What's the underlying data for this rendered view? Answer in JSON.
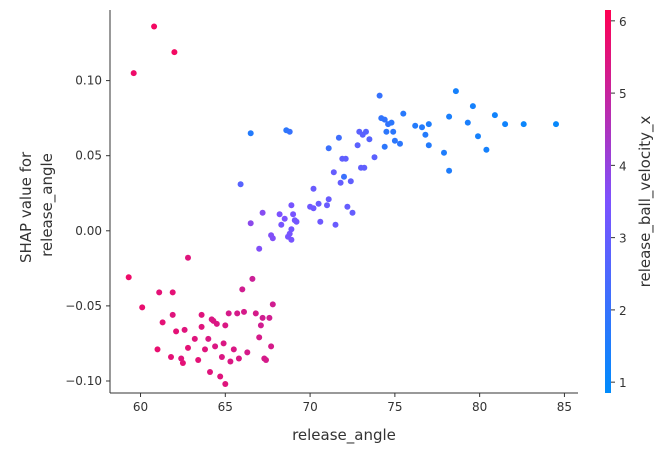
{
  "chart_data": {
    "type": "scatter",
    "title": "",
    "xlabel": "release_angle",
    "ylabel_lines": [
      "SHAP value for",
      "release_angle"
    ],
    "xlim": [
      58.2,
      85.8
    ],
    "ylim": [
      -0.108,
      0.147
    ],
    "xticks": [
      60,
      65,
      70,
      75,
      80,
      85
    ],
    "xtick_labels": [
      "60",
      "65",
      "70",
      "75",
      "80",
      "85"
    ],
    "yticks": [
      -0.1,
      -0.05,
      0.0,
      0.05,
      0.1
    ],
    "ytick_labels": [
      "−0.10",
      "−0.05",
      "0.00",
      "0.05",
      "0.10"
    ],
    "grid": false,
    "colorbar": {
      "label": "release_ball_velocity_x",
      "range": [
        0.85,
        6.15
      ],
      "ticks": [
        1,
        2,
        3,
        4,
        5,
        6
      ],
      "tick_labels": [
        "1",
        "2",
        "3",
        "4",
        "5",
        "6"
      ],
      "colors": {
        "low": "#008bfb",
        "mid": "#7c52ff",
        "high": "#ff0052"
      }
    },
    "points": [
      [
        60.8,
        0.136,
        5.9
      ],
      [
        59.6,
        0.105,
        5.8
      ],
      [
        62.0,
        0.119,
        5.9
      ],
      [
        59.3,
        -0.031,
        5.8
      ],
      [
        60.1,
        -0.051,
        5.7
      ],
      [
        61.1,
        -0.041,
        5.6
      ],
      [
        61.9,
        -0.041,
        5.6
      ],
      [
        62.8,
        -0.018,
        5.5
      ],
      [
        61.3,
        -0.061,
        5.6
      ],
      [
        61.9,
        -0.056,
        5.5
      ],
      [
        61.0,
        -0.079,
        5.7
      ],
      [
        61.8,
        -0.084,
        5.6
      ],
      [
        62.1,
        -0.067,
        5.6
      ],
      [
        62.6,
        -0.066,
        5.5
      ],
      [
        62.5,
        -0.088,
        5.6
      ],
      [
        62.8,
        -0.078,
        5.6
      ],
      [
        63.2,
        -0.072,
        5.5
      ],
      [
        63.4,
        -0.086,
        5.6
      ],
      [
        63.6,
        -0.056,
        5.5
      ],
      [
        63.6,
        -0.064,
        5.5
      ],
      [
        63.8,
        -0.079,
        5.5
      ],
      [
        64.0,
        -0.072,
        5.4
      ],
      [
        64.1,
        -0.094,
        5.5
      ],
      [
        64.3,
        -0.06,
        5.4
      ],
      [
        64.4,
        -0.077,
        5.4
      ],
      [
        64.5,
        -0.062,
        5.4
      ],
      [
        64.7,
        -0.097,
        5.5
      ],
      [
        64.8,
        -0.084,
        5.4
      ],
      [
        64.9,
        -0.075,
        5.4
      ],
      [
        65.0,
        -0.102,
        5.5
      ],
      [
        65.0,
        -0.063,
        5.4
      ],
      [
        65.2,
        -0.055,
        5.3
      ],
      [
        65.3,
        -0.087,
        5.4
      ],
      [
        65.5,
        -0.079,
        5.4
      ],
      [
        65.7,
        -0.055,
        5.3
      ],
      [
        65.8,
        -0.085,
        5.4
      ],
      [
        66.0,
        -0.039,
        5.2
      ],
      [
        66.1,
        -0.054,
        5.3
      ],
      [
        66.3,
        -0.081,
        5.3
      ],
      [
        66.6,
        -0.032,
        5.1
      ],
      [
        66.8,
        -0.055,
        5.3
      ],
      [
        67.0,
        -0.071,
        5.3
      ],
      [
        67.1,
        -0.063,
        5.2
      ],
      [
        67.2,
        -0.058,
        5.2
      ],
      [
        67.3,
        -0.085,
        5.3
      ],
      [
        67.4,
        -0.086,
        5.3
      ],
      [
        67.6,
        -0.058,
        5.2
      ],
      [
        67.7,
        -0.077,
        5.3
      ],
      [
        67.8,
        -0.049,
        5.2
      ],
      [
        64.2,
        -0.059,
        5.4
      ],
      [
        62.4,
        -0.085,
        5.5
      ],
      [
        66.5,
        0.005,
        3.8
      ],
      [
        67.0,
        -0.012,
        3.6
      ],
      [
        67.2,
        0.012,
        3.7
      ],
      [
        67.7,
        -0.003,
        3.6
      ],
      [
        67.8,
        -0.005,
        3.6
      ],
      [
        68.2,
        0.011,
        3.5
      ],
      [
        68.3,
        0.004,
        3.4
      ],
      [
        68.5,
        0.008,
        3.5
      ],
      [
        68.8,
        -0.002,
        3.4
      ],
      [
        68.9,
        -0.006,
        3.4
      ],
      [
        68.9,
        0.017,
        3.4
      ],
      [
        69.0,
        0.011,
        3.4
      ],
      [
        69.1,
        0.007,
        3.3
      ],
      [
        69.2,
        0.006,
        3.3
      ],
      [
        68.7,
        -0.004,
        3.4
      ],
      [
        68.9,
        0.001,
        3.3
      ],
      [
        70.0,
        0.016,
        3.2
      ],
      [
        70.2,
        0.015,
        3.2
      ],
      [
        70.5,
        0.018,
        3.1
      ],
      [
        70.6,
        0.006,
        3.2
      ],
      [
        70.2,
        0.028,
        3.1
      ],
      [
        71.0,
        0.017,
        3.1
      ],
      [
        71.1,
        0.021,
        3.1
      ],
      [
        71.4,
        0.039,
        3.0
      ],
      [
        71.5,
        0.004,
        3.1
      ],
      [
        71.8,
        0.032,
        3.0
      ],
      [
        71.9,
        0.048,
        2.9
      ],
      [
        72.1,
        0.048,
        2.9
      ],
      [
        72.2,
        0.016,
        3.0
      ],
      [
        72.4,
        0.033,
        2.9
      ],
      [
        72.5,
        0.012,
        3.0
      ],
      [
        72.8,
        0.057,
        2.8
      ],
      [
        72.9,
        0.066,
        2.8
      ],
      [
        73.0,
        0.042,
        2.9
      ],
      [
        73.2,
        0.042,
        2.9
      ],
      [
        73.1,
        0.064,
        2.8
      ],
      [
        73.3,
        0.066,
        2.7
      ],
      [
        73.5,
        0.061,
        2.7
      ],
      [
        73.8,
        0.049,
        2.8
      ],
      [
        65.9,
        0.031,
        2.7
      ],
      [
        74.1,
        0.09,
        2.0
      ],
      [
        74.2,
        0.075,
        1.9
      ],
      [
        74.4,
        0.074,
        1.9
      ],
      [
        74.6,
        0.071,
        1.9
      ],
      [
        74.5,
        0.066,
        1.8
      ],
      [
        74.9,
        0.066,
        1.8
      ],
      [
        74.8,
        0.072,
        1.8
      ],
      [
        74.4,
        0.056,
        1.8
      ],
      [
        75.0,
        0.06,
        1.8
      ],
      [
        75.3,
        0.058,
        1.8
      ],
      [
        75.5,
        0.078,
        1.7
      ],
      [
        76.2,
        0.07,
        1.6
      ],
      [
        76.6,
        0.069,
        1.6
      ],
      [
        76.8,
        0.064,
        1.6
      ],
      [
        77.0,
        0.071,
        1.5
      ],
      [
        77.0,
        0.057,
        1.6
      ],
      [
        77.9,
        0.052,
        1.5
      ],
      [
        78.2,
        0.04,
        1.5
      ],
      [
        78.2,
        0.076,
        1.4
      ],
      [
        78.6,
        0.093,
        1.3
      ],
      [
        79.3,
        0.072,
        1.4
      ],
      [
        79.6,
        0.083,
        1.3
      ],
      [
        79.9,
        0.063,
        1.3
      ],
      [
        80.4,
        0.054,
        1.3
      ],
      [
        80.9,
        0.077,
        1.2
      ],
      [
        81.5,
        0.071,
        1.2
      ],
      [
        82.6,
        0.071,
        1.1
      ],
      [
        84.5,
        0.071,
        1.0
      ],
      [
        71.1,
        0.055,
        2.1
      ],
      [
        71.7,
        0.062,
        2.2
      ],
      [
        72.0,
        0.036,
        2.1
      ],
      [
        68.6,
        0.067,
        1.8
      ],
      [
        68.8,
        0.066,
        2.0
      ],
      [
        66.5,
        0.065,
        1.6
      ]
    ]
  }
}
